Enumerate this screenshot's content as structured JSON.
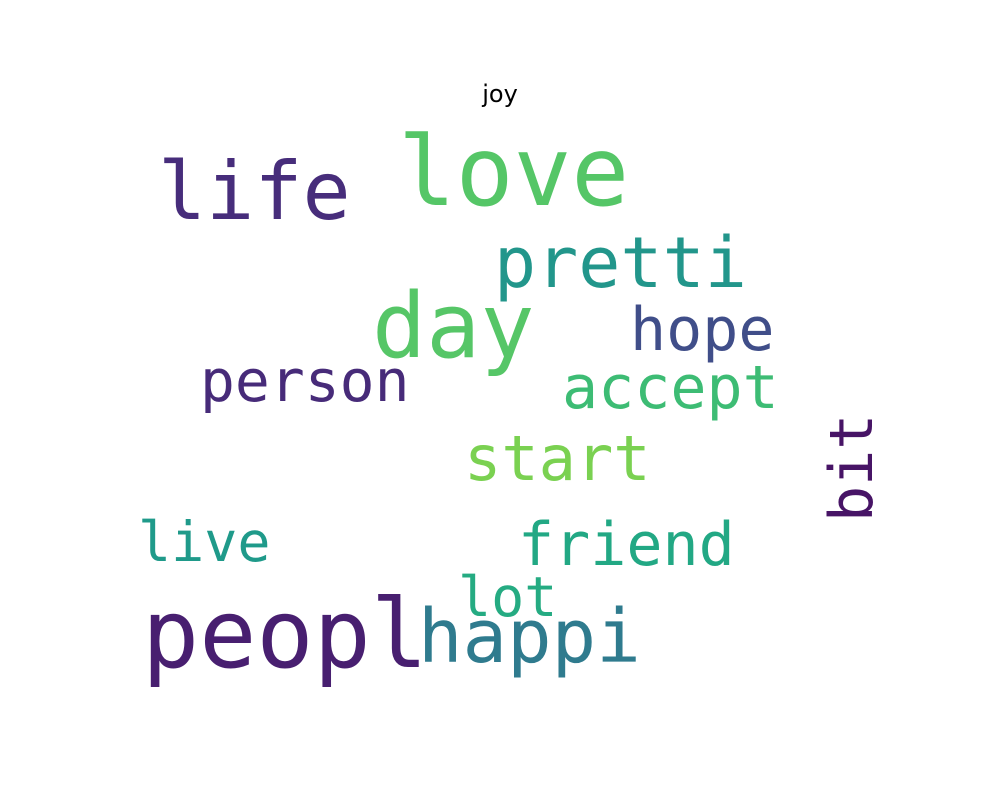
{
  "title": "joy",
  "words": [
    {
      "text": "love",
      "weight": 1.0,
      "color": "#55c667",
      "orientation": "horizontal"
    },
    {
      "text": "life",
      "weight": 0.83,
      "color": "#472d7b",
      "orientation": "horizontal"
    },
    {
      "text": "peopl",
      "weight": 0.99,
      "color": "#481f70",
      "orientation": "horizontal"
    },
    {
      "text": "day",
      "weight": 0.93,
      "color": "#56c667",
      "orientation": "horizontal"
    },
    {
      "text": "pretti",
      "weight": 0.73,
      "color": "#22968b",
      "orientation": "horizontal"
    },
    {
      "text": "happi",
      "weight": 0.77,
      "color": "#2f7b8e",
      "orientation": "horizontal"
    },
    {
      "text": "hope",
      "weight": 0.63,
      "color": "#404e89",
      "orientation": "horizontal"
    },
    {
      "text": "person",
      "weight": 0.61,
      "color": "#472b79",
      "orientation": "horizontal"
    },
    {
      "text": "accept",
      "weight": 0.63,
      "color": "#3dbc74",
      "orientation": "horizontal"
    },
    {
      "text": "start",
      "weight": 0.64,
      "color": "#7ad151",
      "orientation": "horizontal"
    },
    {
      "text": "friend",
      "weight": 0.63,
      "color": "#22a884",
      "orientation": "horizontal"
    },
    {
      "text": "live",
      "weight": 0.57,
      "color": "#1f9a8a",
      "orientation": "horizontal"
    },
    {
      "text": "lot",
      "weight": 0.57,
      "color": "#25ab82",
      "orientation": "horizontal"
    },
    {
      "text": "bit",
      "weight": 0.63,
      "color": "#471466",
      "orientation": "vertical"
    }
  ]
}
